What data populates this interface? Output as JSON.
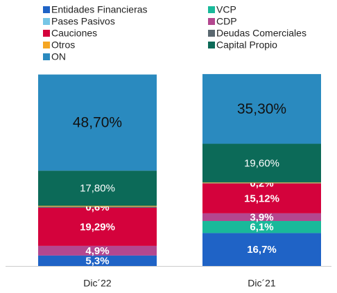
{
  "chart_data": {
    "type": "stacked_bar",
    "categories": [
      "Dic´22",
      "Dic´21"
    ],
    "ylim": [
      0,
      100
    ],
    "series": [
      {
        "name": "Entidades Financieras",
        "color": "#1f63c6",
        "values": [
          5.3,
          16.7
        ],
        "value_labels": [
          "5,3%",
          "16,7%"
        ]
      },
      {
        "name": "VCP",
        "color": "#19b99a",
        "values": [
          null,
          6.1
        ],
        "value_labels": [
          null,
          "6,1%"
        ]
      },
      {
        "name": "Pases Pasivos",
        "color": "#76c6e6",
        "values": [
          null,
          null
        ],
        "value_labels": [
          null,
          null
        ]
      },
      {
        "name": "CDP",
        "color": "#b3478f",
        "values": [
          4.9,
          3.9
        ],
        "value_labels": [
          "4,9%",
          "3,9%"
        ]
      },
      {
        "name": "Cauciones",
        "color": "#d4023c",
        "values": [
          19.29,
          15.12
        ],
        "value_labels": [
          "19,29%",
          "15,12%"
        ]
      },
      {
        "name": "Deudas Comerciales",
        "color": "#5b6870",
        "values": [
          0.6,
          0.2
        ],
        "value_labels": [
          "0,6%",
          "0,2%"
        ]
      },
      {
        "name": "Otros",
        "color": "#f5a623",
        "values": [
          0.4,
          0.3
        ],
        "value_labels": [
          null,
          null
        ]
      },
      {
        "name": "Capital Propio",
        "color": "#0c6a58",
        "values": [
          17.8,
          19.6
        ],
        "value_labels": [
          "17,80%",
          "19,60%"
        ]
      },
      {
        "name": "ON",
        "color": "#2a8abf",
        "values": [
          48.7,
          35.3
        ],
        "value_labels": [
          "48,70%",
          "35,30%"
        ]
      }
    ]
  }
}
